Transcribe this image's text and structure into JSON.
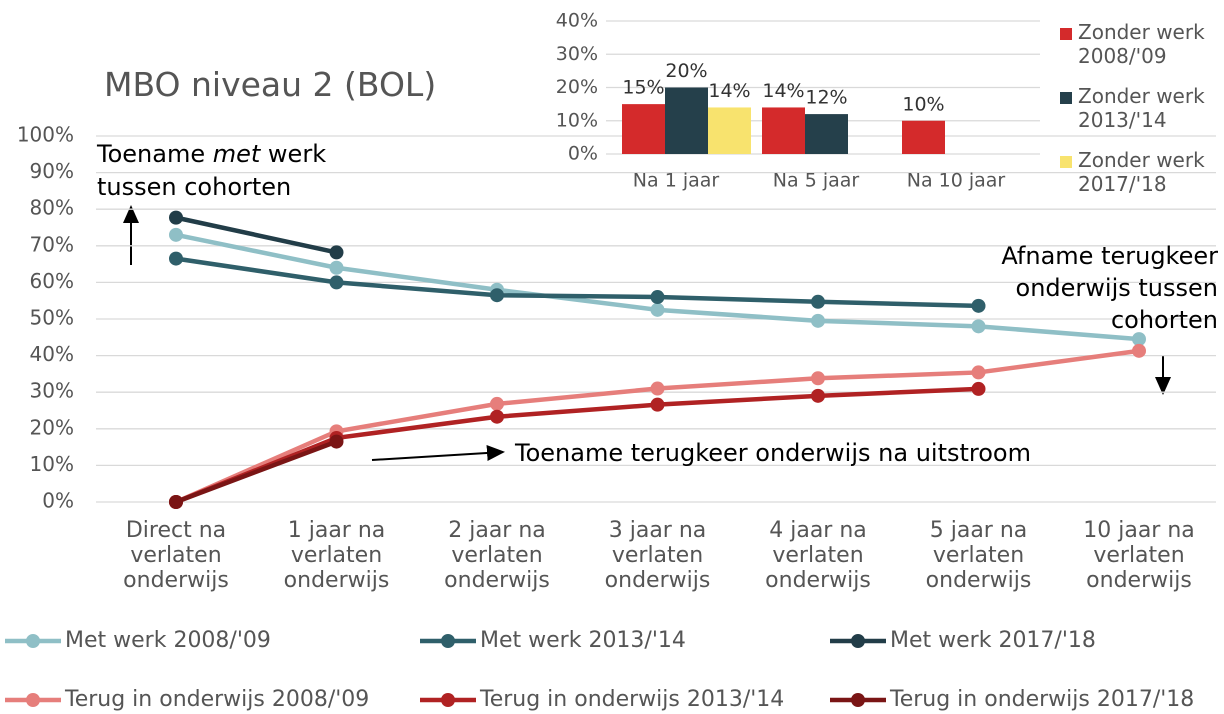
{
  "chart_data": [
    {
      "type": "line",
      "title": "MBO niveau 2 (BOL)",
      "categories": [
        "Direct na verlaten onderwijs",
        "1 jaar na verlaten onderwijs",
        "2 jaar na verlaten onderwijs",
        "3 jaar na verlaten onderwijs",
        "4 jaar na verlaten onderwijs",
        "5 jaar na verlaten onderwijs",
        "10 jaar na verlaten onderwijs"
      ],
      "series": [
        {
          "name": "Met werk 2008/'09",
          "color": "#8fbfc6",
          "values": [
            73,
            64,
            58,
            52.5,
            49.5,
            48,
            44.5
          ]
        },
        {
          "name": "Met werk 2013/'14",
          "color": "#2f5f6a",
          "values": [
            66.5,
            60,
            56.5,
            56,
            54.7,
            53.6,
            null
          ]
        },
        {
          "name": "Met werk 2017/'18",
          "color": "#223d48",
          "values": [
            77.7,
            68.2,
            null,
            null,
            null,
            null,
            null
          ]
        },
        {
          "name": "Terug in onderwijs 2008/'09",
          "color": "#e67e7b",
          "values": [
            0,
            19.3,
            26.8,
            31,
            33.8,
            35.4,
            41.3
          ]
        },
        {
          "name": "Terug in onderwijs 2013/'14",
          "color": "#b02223",
          "values": [
            0,
            17.5,
            23.3,
            26.6,
            29,
            30.9,
            null
          ]
        },
        {
          "name": "Terug in onderwijs 2017/'18",
          "color": "#7a1515",
          "values": [
            0,
            16.5,
            null,
            null,
            null,
            null,
            null
          ]
        }
      ],
      "ylim": [
        0,
        100
      ],
      "yticks": [
        {
          "value": 0,
          "label": "0%"
        },
        {
          "value": 10,
          "label": "10%"
        },
        {
          "value": 20,
          "label": "20%"
        },
        {
          "value": 30,
          "label": "30%"
        },
        {
          "value": 40,
          "label": "40%"
        },
        {
          "value": 50,
          "label": "50%"
        },
        {
          "value": 60,
          "label": "60%"
        },
        {
          "value": 70,
          "label": "70%"
        },
        {
          "value": 80,
          "label": "80%"
        },
        {
          "value": 90,
          "label": "90%"
        },
        {
          "value": 100,
          "label": "100%"
        }
      ],
      "grid": true,
      "annotations": [
        "Toename ",
        "met",
        " werk",
        "tussen cohorten",
        "Afname terugkeer onderwijs tussen cohorten",
        "Toename terugkeer onderwijs na uitstroom"
      ]
    },
    {
      "type": "bar",
      "categories": [
        "Na 1 jaar",
        "Na 5 jaar",
        "Na 10 jaar"
      ],
      "series": [
        {
          "name": "Zonder werk 2008/'09",
          "color": "#d42a2b",
          "values": [
            15,
            14,
            10
          ],
          "value_labels": [
            "15%",
            "14%",
            "10%"
          ]
        },
        {
          "name": "Zonder werk 2013/'14",
          "color": "#25404b",
          "values": [
            20,
            12,
            null
          ],
          "value_labels": [
            "20%",
            "12%",
            null
          ]
        },
        {
          "name": "Zonder werk 2017/'18",
          "color": "#f8e36e",
          "values": [
            14,
            null,
            null
          ],
          "value_labels": [
            "14%",
            null,
            null
          ]
        }
      ],
      "ylim": [
        0,
        40
      ],
      "yticks": [
        {
          "value": 0,
          "label": "0%"
        },
        {
          "value": 10,
          "label": "10%"
        },
        {
          "value": 20,
          "label": "20%"
        },
        {
          "value": 30,
          "label": "30%"
        },
        {
          "value": 40,
          "label": "40%"
        }
      ],
      "grid": true
    }
  ]
}
